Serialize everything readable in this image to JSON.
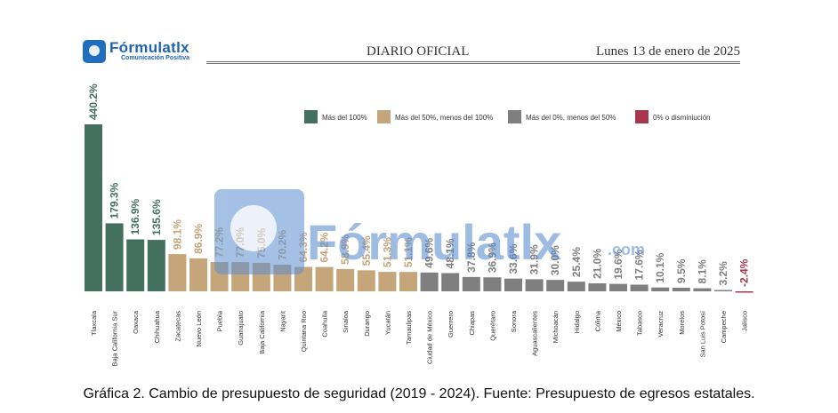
{
  "header": {
    "logo_name": "Fórmulatlx",
    "logo_tagline": "Comunicación Positiva",
    "publication": "DIARIO OFICIAL",
    "date": "Lunes 13 de enero de 2025"
  },
  "watermark": {
    "text": "Fórmulatlx",
    "suffix": ".com"
  },
  "caption": "Gráfica 2. Cambio de presupuesto de seguridad (2019 - 2024). Fuente: Presupuesto de egresos estatales.",
  "colors": {
    "over100": "#44705f",
    "50to100": "#c5a57a",
    "0to50": "#7f7f7f",
    "negative": "#a6374f"
  },
  "chart_data": {
    "type": "bar",
    "title": "",
    "xlabel": "",
    "ylabel": "",
    "ylim": [
      -5,
      445
    ],
    "value_unit": "%",
    "legend": [
      {
        "key": "over100",
        "label": "Más del 100%"
      },
      {
        "key": "50to100",
        "label": "Más del 50%, menos del 100%"
      },
      {
        "key": "0to50",
        "label": "Más del 0%, menos del 50%"
      },
      {
        "key": "negative",
        "label": "0% o disminiución"
      }
    ],
    "legend_position": "top-right",
    "categories": [
      "Tlaxcala",
      "Baja California Sur",
      "Oaxaca",
      "Chihuahua",
      "Zacatecas",
      "Nuevo León",
      "Puebla",
      "Guanajuato",
      "Baja California",
      "Nayarit",
      "Quintana Roo",
      "Coahuila",
      "Sinaloa",
      "Durango",
      "Yucatán",
      "Tamaulipas",
      "Ciudad de México",
      "Guerrero",
      "Chiapas",
      "Querétaro",
      "Sonora",
      "Aguascalientes",
      "Michoacán",
      "Hidalgo",
      "Colima",
      "México",
      "Tabasco",
      "Veracruz",
      "Morelos",
      "San Luis Potosí",
      "Campeche",
      "Jalisco"
    ],
    "values": [
      440.2,
      179.3,
      136.9,
      135.6,
      98.1,
      86.9,
      77.2,
      77.0,
      75.0,
      70.2,
      64.3,
      64.2,
      58.9,
      55.4,
      51.3,
      51.1,
      49.6,
      48.1,
      37.8,
      36.9,
      33.6,
      31.9,
      30.0,
      25.4,
      21.0,
      19.6,
      17.6,
      10.1,
      9.5,
      8.1,
      3.2,
      -2.4
    ],
    "value_labels": [
      "440.2%",
      "179.3%",
      "136.9%",
      "135.6%",
      "98.1%",
      "86.9%",
      "77.2%",
      "77.0%",
      "75.0%",
      "70.2%",
      "64.3%",
      "64.2%",
      "58.9%",
      "55.4%",
      "51.3%",
      "51.1%",
      "49.6%",
      "48.1%",
      "37.8%",
      "36.9%",
      "33.6%",
      "31.9%",
      "30.0%",
      "25.4%",
      "21.0%",
      "19.6%",
      "17.6%",
      "10.1%",
      "9.5%",
      "8.1%",
      "3.2%",
      "-2.4%"
    ],
    "groups": [
      "over100",
      "over100",
      "over100",
      "over100",
      "50to100",
      "50to100",
      "50to100",
      "50to100",
      "50to100",
      "50to100",
      "50to100",
      "50to100",
      "50to100",
      "50to100",
      "50to100",
      "50to100",
      "0to50",
      "0to50",
      "0to50",
      "0to50",
      "0to50",
      "0to50",
      "0to50",
      "0to50",
      "0to50",
      "0to50",
      "0to50",
      "0to50",
      "0to50",
      "0to50",
      "0to50",
      "negative"
    ]
  }
}
